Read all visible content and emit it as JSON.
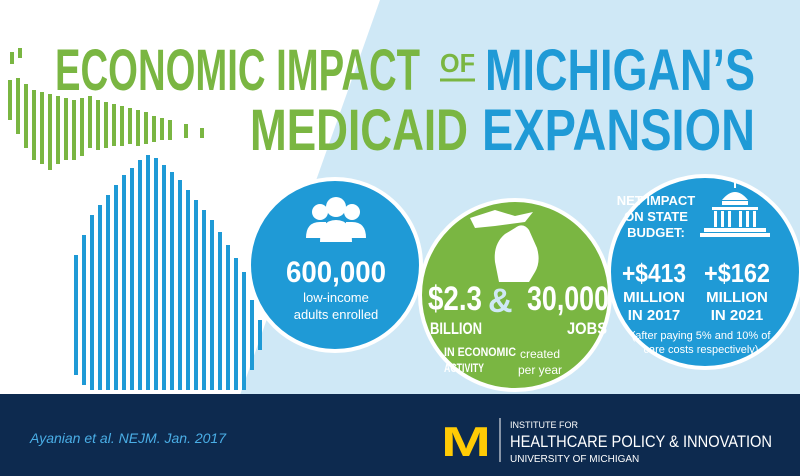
{
  "header": {
    "title_line1_left": "ECONOMIC IMPACT",
    "title_connector": "OF",
    "title_line1_right": "MICHIGAN’S",
    "title_line2_left": "MEDICAID",
    "title_line2_right": "EXPANSION"
  },
  "enrollment": {
    "value": "600,000",
    "label_lines": [
      "low-income",
      "adults enrolled"
    ]
  },
  "economy": {
    "activity_value": "$2.3",
    "activity_unit": "BILLION",
    "activity_label_lines": [
      "IN ECONOMIC",
      "ACTIVITY"
    ],
    "connector": "&",
    "jobs_value": "30,000",
    "jobs_unit": "JOBS",
    "jobs_label_lines": [
      "created",
      "per year"
    ]
  },
  "budget": {
    "heading_lines": [
      "NET IMPACT",
      "ON STATE",
      "BUDGET:"
    ],
    "items": [
      {
        "value": "+$413",
        "lines": [
          "MILLION",
          "IN 2017"
        ]
      },
      {
        "value": "+$162",
        "lines": [
          "MILLION",
          "IN 2021"
        ]
      }
    ],
    "note_lines": [
      "(after paying 5% and 10% of",
      "care costs respectively)"
    ]
  },
  "footer": {
    "citation": "Ayanian et al. NEJM. Jan. 2017",
    "logo_mark": "M",
    "institute_lines": [
      "INSTITUTE FOR",
      "HEALTHCARE POLICY & INNOVATION",
      "UNIVERSITY OF MICHIGAN"
    ]
  }
}
